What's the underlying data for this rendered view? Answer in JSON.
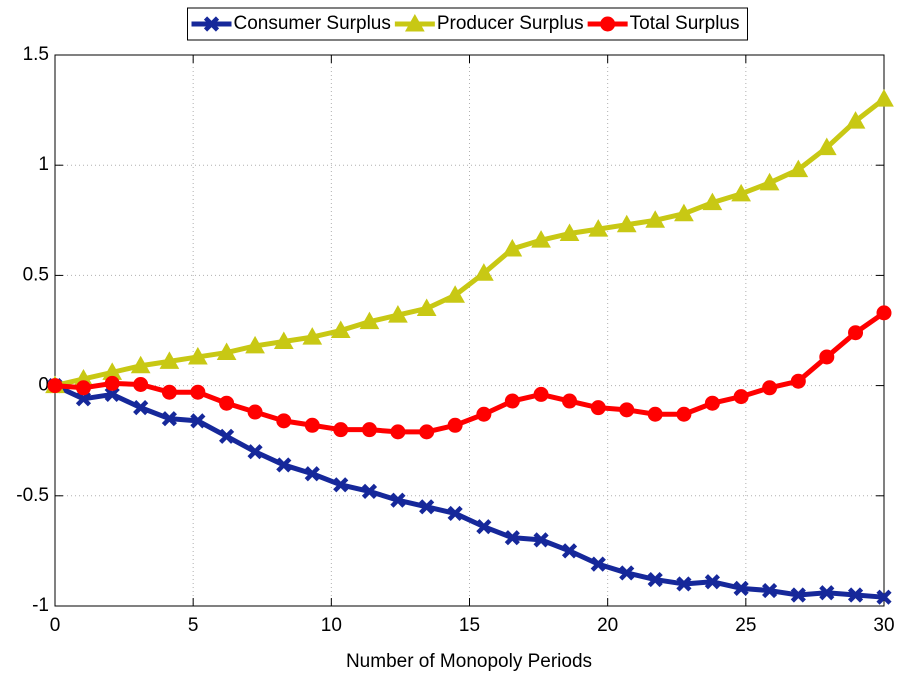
{
  "chart_data": {
    "type": "line",
    "x_label": "Number of Monopoly Periods",
    "x": [
      0,
      1.03,
      2.07,
      3.1,
      4.14,
      5.17,
      6.21,
      7.24,
      8.28,
      9.31,
      10.34,
      11.38,
      12.41,
      13.45,
      14.48,
      15.52,
      16.55,
      17.59,
      18.62,
      19.66,
      20.69,
      21.72,
      22.76,
      23.79,
      24.83,
      25.86,
      26.9,
      27.93,
      28.97,
      30
    ],
    "series": [
      {
        "name": "Consumer Surplus",
        "color": "#16289a",
        "marker": "x",
        "values": [
          0,
          -0.06,
          -0.04,
          -0.1,
          -0.15,
          -0.16,
          -0.23,
          -0.3,
          -0.36,
          -0.4,
          -0.45,
          -0.48,
          -0.52,
          -0.55,
          -0.58,
          -0.64,
          -0.69,
          -0.7,
          -0.75,
          -0.81,
          -0.85,
          -0.88,
          -0.9,
          -0.89,
          -0.92,
          -0.93,
          -0.95,
          -0.94,
          -0.95,
          -0.96
        ]
      },
      {
        "name": "Producer Surplus",
        "color": "#c8c814",
        "marker": "triangle",
        "values": [
          0,
          0.03,
          0.06,
          0.09,
          0.11,
          0.13,
          0.15,
          0.18,
          0.2,
          0.22,
          0.25,
          0.29,
          0.32,
          0.35,
          0.41,
          0.51,
          0.62,
          0.66,
          0.69,
          0.71,
          0.73,
          0.75,
          0.78,
          0.83,
          0.87,
          0.92,
          0.98,
          1.08,
          1.2,
          1.3
        ]
      },
      {
        "name": "Total Surplus",
        "color": "#ff0000",
        "marker": "circle",
        "values": [
          0,
          -0.01,
          0.01,
          0.005,
          -0.03,
          -0.03,
          -0.08,
          -0.12,
          -0.16,
          -0.18,
          -0.2,
          -0.2,
          -0.21,
          -0.21,
          -0.18,
          -0.13,
          -0.07,
          -0.04,
          -0.07,
          -0.1,
          -0.11,
          -0.13,
          -0.13,
          -0.08,
          -0.05,
          -0.01,
          0.02,
          0.13,
          0.24,
          0.33
        ]
      }
    ],
    "xlim": [
      0,
      30
    ],
    "xticks": [
      0,
      5,
      10,
      15,
      20,
      25,
      30
    ],
    "ylim": [
      -1,
      1.5
    ],
    "yticks": [
      -1,
      -0.5,
      0,
      0.5,
      1,
      1.5
    ],
    "grid": true,
    "legend": "top"
  }
}
